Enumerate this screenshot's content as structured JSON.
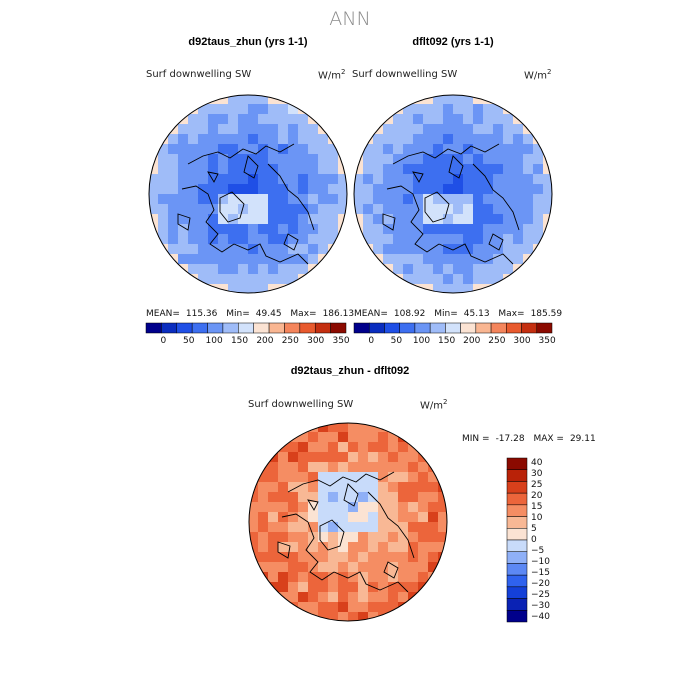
{
  "figure": {
    "title": "ANN",
    "var_name": "Surf downwelling SW",
    "units_base": "W/m",
    "units_exp": "2",
    "mean_label": "MEAN=",
    "min_label": "Min=",
    "max_label": "Max="
  },
  "panels": [
    {
      "title": "d92taus_zhun (yrs 1-1)",
      "mean": "115.36",
      "min": "49.45",
      "max": "186.13"
    },
    {
      "title": "dflt092 (yrs 1-1)",
      "mean": "108.92",
      "min": "45.13",
      "max": "185.59"
    },
    {
      "title": "d92taus_zhun - dflt092",
      "min_label": "MIN =",
      "max_label": "MAX =",
      "min": "-17.28",
      "max": "29.11"
    }
  ],
  "colors": {
    "seq": [
      "#00008b",
      "#0a2dbf",
      "#1f4fe6",
      "#3d6ff0",
      "#6b95f5",
      "#9fbcf8",
      "#d2e2fb",
      "#fbe3d3",
      "#f9b692",
      "#f4855c",
      "#e85a2e",
      "#c42f10",
      "#8b0a00"
    ],
    "div": [
      "#00008b",
      "#0a22b4",
      "#1440d8",
      "#2f62ee",
      "#5c88f4",
      "#8fb0f7",
      "#c8dbfa",
      "#fbe3d3",
      "#f8b895",
      "#f58d63",
      "#ec653b",
      "#d8401b",
      "#b92208",
      "#8b0a00"
    ]
  },
  "chart_data": [
    {
      "type": "heatmap",
      "title": "d92taus_zhun (yrs 1-1)",
      "variable": "Surf downwelling SW",
      "units": "W/m^2",
      "projection": "north polar stereographic",
      "stats": {
        "mean": 115.36,
        "min": 49.45,
        "max": 186.13
      },
      "levels": [
        0,
        25,
        50,
        75,
        100,
        125,
        150,
        175,
        200,
        225,
        250,
        275,
        300,
        325,
        350
      ],
      "colorbar_ticks": [
        "0",
        "50",
        "100",
        "150",
        "200",
        "250",
        "300",
        "350"
      ]
    },
    {
      "type": "heatmap",
      "title": "dflt092 (yrs 1-1)",
      "variable": "Surf downwelling SW",
      "units": "W/m^2",
      "projection": "north polar stereographic",
      "stats": {
        "mean": 108.92,
        "min": 45.13,
        "max": 185.59
      },
      "levels": [
        0,
        25,
        50,
        75,
        100,
        125,
        150,
        175,
        200,
        225,
        250,
        275,
        300,
        325,
        350
      ],
      "colorbar_ticks": [
        "0",
        "50",
        "100",
        "150",
        "200",
        "250",
        "300",
        "350"
      ]
    },
    {
      "type": "heatmap",
      "title": "d92taus_zhun - dflt092",
      "variable": "Surf downwelling SW",
      "units": "W/m^2",
      "projection": "north polar stereographic",
      "stats": {
        "min": -17.28,
        "max": 29.11
      },
      "levels": [
        -40,
        -30,
        -25,
        -20,
        -15,
        -10,
        -5,
        0,
        5,
        10,
        15,
        20,
        25,
        30,
        40
      ],
      "colorbar_ticks": [
        "40",
        "30",
        "25",
        "20",
        "15",
        "10",
        "5",
        "0",
        "−5",
        "−10",
        "−15",
        "−20",
        "−25",
        "−30",
        "−40"
      ]
    }
  ]
}
